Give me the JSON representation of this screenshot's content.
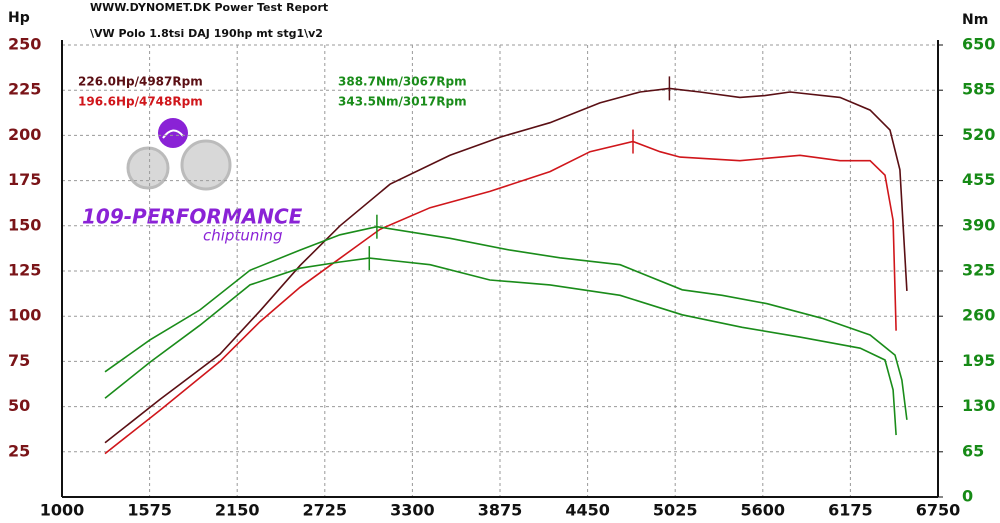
{
  "chart_data": {
    "type": "line",
    "header": "WWW.DYNOMET.DK  Power Test Report",
    "subtitle": "\\VW Polo 1.8tsi DAJ 190hp mt stg1\\v2",
    "y_label": "Hp",
    "y2_label": "Nm",
    "logo_text": "109-PERFORMANCE",
    "logo_subtext": "chiptuning",
    "xlim": [
      1000,
      6750
    ],
    "xticks": [
      1000,
      1575,
      2150,
      2725,
      3300,
      3875,
      4450,
      5025,
      5600,
      6175,
      6750
    ],
    "ylim": [
      0,
      250
    ],
    "yticks": [
      25,
      50,
      75,
      100,
      125,
      150,
      175,
      200,
      225,
      250
    ],
    "y2lim": [
      0,
      650
    ],
    "y2ticks": [
      0,
      65,
      130,
      195,
      260,
      325,
      390,
      455,
      520,
      585,
      650
    ],
    "grid": true,
    "series": [
      {
        "name": "226.0Hp/4987Rpm",
        "color": "#5a0f14",
        "axis": "y",
        "x": [
          1282,
          1643,
          2037,
          2300,
          2562,
          2825,
          3153,
          3547,
          3875,
          4203,
          4531,
          4794,
          4987,
          5188,
          5450,
          5614,
          5779,
          6107,
          6304,
          6435,
          6500,
          6546
        ],
        "values": [
          30,
          54,
          79,
          103,
          128,
          150,
          173,
          189,
          199,
          207,
          218,
          224,
          226,
          224,
          221,
          222,
          224,
          221,
          214,
          203,
          181,
          114
        ]
      },
      {
        "name": "196.6Hp/4748Rpm",
        "color": "#d0161b",
        "axis": "y",
        "x": [
          1282,
          1643,
          2037,
          2300,
          2562,
          2825,
          3087,
          3416,
          3809,
          4203,
          4466,
          4748,
          4925,
          5057,
          5450,
          5844,
          6107,
          6304,
          6402,
          6455,
          6475
        ],
        "values": [
          24,
          48,
          75,
          97,
          116,
          132,
          148,
          160,
          169,
          180,
          191,
          196.6,
          191,
          188,
          186,
          189,
          186,
          186,
          178,
          153,
          92
        ]
      },
      {
        "name": "388.7Nm/3067Rpm",
        "color": "#1a8c1a",
        "axis": "y2",
        "x": [
          1282,
          1578,
          1906,
          2234,
          2562,
          2825,
          3067,
          3547,
          3941,
          4269,
          4663,
          5071,
          5333,
          5628,
          5989,
          6304,
          6468,
          6513,
          6546
        ],
        "values": [
          180,
          226,
          269,
          326,
          355,
          377,
          388.7,
          372,
          355,
          344,
          334,
          298,
          290,
          278,
          257,
          233,
          204,
          168,
          111
        ]
      },
      {
        "name": "343.5Nm/3017Rpm",
        "color": "#1a8c1a",
        "axis": "y2",
        "x": [
          1282,
          1578,
          1906,
          2234,
          2562,
          2825,
          3017,
          3416,
          3809,
          4203,
          4663,
          5071,
          5464,
          5844,
          6239,
          6402,
          6455,
          6475
        ],
        "values": [
          142,
          194,
          247,
          305,
          329,
          338,
          343.5,
          334,
          312,
          305,
          290,
          262,
          244,
          230,
          214,
          197,
          154,
          89
        ]
      }
    ]
  }
}
